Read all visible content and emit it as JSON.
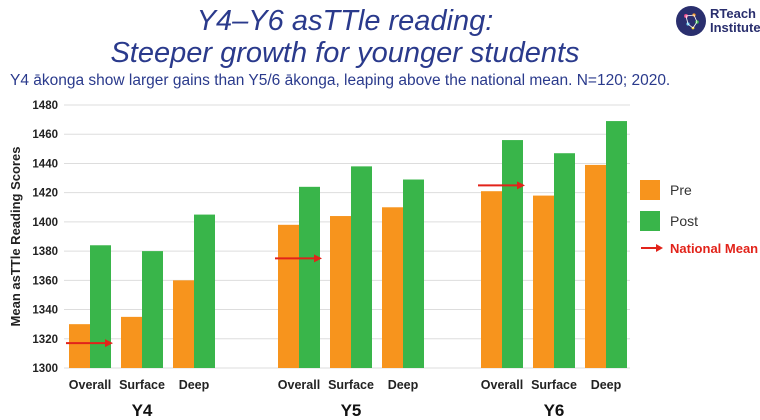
{
  "title_line1": "Y4–Y6 asTTle reading:",
  "title_line2": "Steeper growth for younger students",
  "subtitle": "Y4 ākonga show larger gains than Y5/6 ākonga, leaping above the national mean. N=120; 2020.",
  "logo": {
    "line1": "RTeach",
    "line2": "Institute",
    "icon": "brain-icon"
  },
  "colors": {
    "pre": "#f7941d",
    "post": "#39b54a",
    "national_mean": "#e2231a",
    "title": "#2a3a8c"
  },
  "chart_data": {
    "type": "bar",
    "ylabel": "Mean asTTle Reading Scores",
    "ylim": [
      1300,
      1480
    ],
    "yticks": [
      1300,
      1320,
      1340,
      1360,
      1380,
      1400,
      1420,
      1440,
      1460,
      1480
    ],
    "grid": true,
    "legend_position": "right",
    "groups": [
      {
        "name": "Y4",
        "categories": [
          "Overall",
          "Surface",
          "Deep"
        ],
        "pre": [
          1330,
          1335,
          1360
        ],
        "post": [
          1384,
          1380,
          1405
        ],
        "national_mean": 1317
      },
      {
        "name": "Y5",
        "categories": [
          "Overall",
          "Surface",
          "Deep"
        ],
        "pre": [
          1398,
          1404,
          1410
        ],
        "post": [
          1424,
          1438,
          1429
        ],
        "national_mean": 1375
      },
      {
        "name": "Y6",
        "categories": [
          "Overall",
          "Surface",
          "Deep"
        ],
        "pre": [
          1421,
          1418,
          1439
        ],
        "post": [
          1456,
          1447,
          1469
        ],
        "national_mean": 1425
      }
    ],
    "legend": [
      "Pre",
      "Post",
      "National Mean"
    ]
  }
}
